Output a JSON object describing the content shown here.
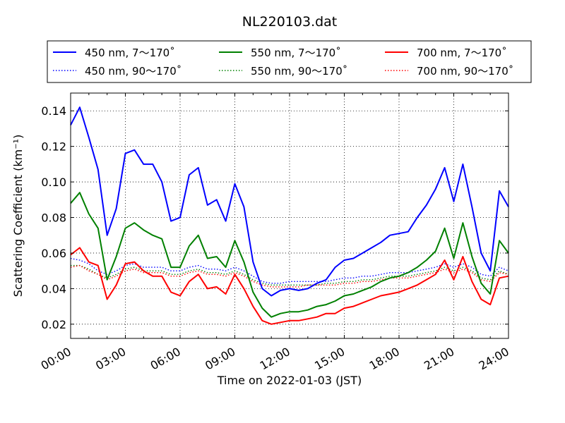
{
  "chart_data": {
    "type": "line",
    "title": "NL220103.dat",
    "xlabel": "Time on 2022-01-03 (JST)",
    "ylabel": "Scattering Coefficient (km⁻¹)",
    "xlim": [
      "00:00",
      "24:00"
    ],
    "ylim": [
      0.012,
      0.15
    ],
    "x_ticks": [
      "00:00",
      "03:00",
      "06:00",
      "09:00",
      "12:00",
      "15:00",
      "18:00",
      "21:00",
      "24:00"
    ],
    "y_ticks": [
      "0.02",
      "0.04",
      "0.06",
      "0.08",
      "0.10",
      "0.12",
      "0.14"
    ],
    "grid": true,
    "legend_position": "top",
    "x": [
      "00:00",
      "00:30",
      "01:00",
      "01:30",
      "02:00",
      "02:30",
      "03:00",
      "03:30",
      "04:00",
      "04:30",
      "05:00",
      "05:30",
      "06:00",
      "06:30",
      "07:00",
      "07:30",
      "08:00",
      "08:30",
      "09:00",
      "09:30",
      "10:00",
      "10:30",
      "11:00",
      "11:30",
      "12:00",
      "12:30",
      "13:00",
      "13:30",
      "14:00",
      "14:30",
      "15:00",
      "15:30",
      "16:00",
      "16:30",
      "17:00",
      "17:30",
      "18:00",
      "18:30",
      "19:00",
      "19:30",
      "20:00",
      "20:30",
      "21:00",
      "21:30",
      "22:00",
      "22:30",
      "23:00",
      "23:30",
      "24:00"
    ],
    "series": [
      {
        "name": "450 nm, 7～170˚",
        "color": "#0000ff",
        "style": "solid",
        "values": [
          0.132,
          0.142,
          0.125,
          0.107,
          0.07,
          0.085,
          0.116,
          0.118,
          0.11,
          0.11,
          0.1,
          0.078,
          0.08,
          0.104,
          0.108,
          0.087,
          0.09,
          0.078,
          0.099,
          0.086,
          0.055,
          0.04,
          0.036,
          0.039,
          0.04,
          0.039,
          0.04,
          0.043,
          0.045,
          0.052,
          0.056,
          0.057,
          0.06,
          0.063,
          0.066,
          0.07,
          0.071,
          0.072,
          0.08,
          0.087,
          0.096,
          0.108,
          0.089,
          0.11,
          0.086,
          0.06,
          0.05,
          0.095,
          0.086
        ]
      },
      {
        "name": "450 nm, 90～170˚",
        "color": "#0000ff",
        "style": "dotted",
        "values": [
          0.057,
          0.056,
          0.054,
          0.05,
          0.048,
          0.05,
          0.053,
          0.054,
          0.052,
          0.052,
          0.052,
          0.05,
          0.05,
          0.052,
          0.053,
          0.051,
          0.051,
          0.05,
          0.052,
          0.05,
          0.047,
          0.044,
          0.043,
          0.043,
          0.044,
          0.044,
          0.044,
          0.044,
          0.044,
          0.045,
          0.046,
          0.046,
          0.047,
          0.047,
          0.048,
          0.049,
          0.049,
          0.049,
          0.05,
          0.051,
          0.052,
          0.054,
          0.052,
          0.054,
          0.052,
          0.048,
          0.047,
          0.052,
          0.05
        ]
      },
      {
        "name": "550 nm, 7～170˚",
        "color": "#008000",
        "style": "solid",
        "values": [
          0.088,
          0.094,
          0.082,
          0.074,
          0.045,
          0.058,
          0.074,
          0.077,
          0.073,
          0.07,
          0.068,
          0.052,
          0.052,
          0.064,
          0.07,
          0.057,
          0.058,
          0.052,
          0.067,
          0.055,
          0.038,
          0.029,
          0.024,
          0.026,
          0.027,
          0.027,
          0.028,
          0.03,
          0.031,
          0.033,
          0.036,
          0.037,
          0.039,
          0.041,
          0.044,
          0.046,
          0.047,
          0.049,
          0.052,
          0.056,
          0.061,
          0.074,
          0.057,
          0.077,
          0.058,
          0.043,
          0.037,
          0.067,
          0.06
        ]
      },
      {
        "name": "550 nm, 90～170˚",
        "color": "#008000",
        "style": "dotted",
        "values": [
          0.053,
          0.053,
          0.051,
          0.048,
          0.046,
          0.048,
          0.051,
          0.052,
          0.05,
          0.05,
          0.05,
          0.048,
          0.048,
          0.05,
          0.051,
          0.049,
          0.049,
          0.048,
          0.05,
          0.048,
          0.045,
          0.043,
          0.042,
          0.042,
          0.042,
          0.042,
          0.042,
          0.042,
          0.043,
          0.043,
          0.044,
          0.044,
          0.045,
          0.045,
          0.046,
          0.047,
          0.047,
          0.047,
          0.048,
          0.049,
          0.05,
          0.052,
          0.05,
          0.052,
          0.05,
          0.046,
          0.045,
          0.05,
          0.048
        ]
      },
      {
        "name": "700 nm, 7～170˚",
        "color": "#ff0000",
        "style": "solid",
        "values": [
          0.059,
          0.063,
          0.055,
          0.053,
          0.034,
          0.042,
          0.054,
          0.055,
          0.05,
          0.047,
          0.047,
          0.038,
          0.036,
          0.044,
          0.048,
          0.04,
          0.041,
          0.037,
          0.048,
          0.04,
          0.03,
          0.022,
          0.02,
          0.021,
          0.022,
          0.022,
          0.023,
          0.024,
          0.026,
          0.026,
          0.029,
          0.03,
          0.032,
          0.034,
          0.036,
          0.037,
          0.038,
          0.04,
          0.042,
          0.045,
          0.048,
          0.056,
          0.045,
          0.058,
          0.044,
          0.034,
          0.031,
          0.046,
          0.047
        ]
      },
      {
        "name": "700 nm, 90～170˚",
        "color": "#ff0000",
        "style": "dotted",
        "values": [
          0.052,
          0.053,
          0.05,
          0.048,
          0.045,
          0.047,
          0.05,
          0.051,
          0.049,
          0.049,
          0.049,
          0.047,
          0.047,
          0.049,
          0.05,
          0.048,
          0.048,
          0.047,
          0.049,
          0.047,
          0.044,
          0.042,
          0.041,
          0.041,
          0.041,
          0.041,
          0.042,
          0.042,
          0.042,
          0.042,
          0.043,
          0.043,
          0.044,
          0.044,
          0.045,
          0.046,
          0.046,
          0.046,
          0.047,
          0.048,
          0.049,
          0.051,
          0.049,
          0.051,
          0.049,
          0.045,
          0.044,
          0.049,
          0.048
        ]
      }
    ]
  }
}
